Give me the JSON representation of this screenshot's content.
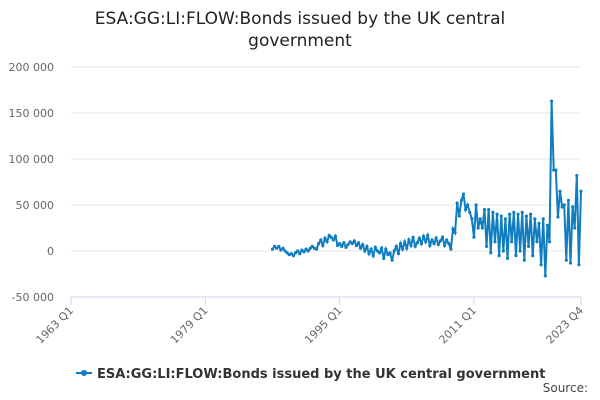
{
  "chart_data": {
    "type": "line",
    "title": "ESA:GG:LI:FLOW:Bonds issued by the UK central government",
    "source": "Source:",
    "categories": [
      "1963 Q1",
      null,
      null,
      null,
      null,
      null,
      null,
      null,
      null,
      null,
      null,
      null,
      null,
      null,
      null,
      null,
      null,
      null,
      null,
      null,
      null,
      null,
      null,
      null,
      null,
      null,
      null,
      null,
      null,
      null,
      null,
      null,
      null,
      null,
      null,
      null,
      null,
      null,
      null,
      null,
      null,
      null,
      null,
      null,
      null,
      null,
      null,
      null,
      null,
      null,
      null,
      null,
      null,
      null,
      null,
      null,
      null,
      null,
      null,
      null,
      null,
      null,
      null,
      null,
      "1979 Q1",
      null,
      null,
      null,
      null,
      null,
      null,
      null,
      null,
      null,
      null,
      null,
      null,
      null,
      null,
      null,
      null,
      null,
      null,
      null,
      null,
      null,
      null,
      null,
      null,
      null,
      null,
      null,
      null,
      null,
      null,
      null,
      null,
      null,
      null,
      null,
      null,
      null,
      null,
      null,
      null,
      null,
      null,
      null,
      null,
      null,
      null,
      null,
      null,
      null,
      null,
      null,
      null,
      null,
      null,
      null,
      null,
      null,
      null,
      null,
      null,
      null,
      null,
      null,
      "1995 Q1",
      null,
      null,
      null,
      null,
      null,
      null,
      null,
      null,
      null,
      null,
      null,
      null,
      null,
      null,
      null,
      null,
      null,
      null,
      null,
      null,
      null,
      null,
      null,
      null,
      null,
      null,
      null,
      null,
      null,
      null,
      null,
      null,
      null,
      null,
      null,
      null,
      null,
      null,
      null,
      null,
      null,
      null,
      null,
      null,
      null,
      null,
      null,
      null,
      null,
      null,
      null,
      null,
      null,
      null,
      null,
      null,
      null,
      null,
      null,
      null,
      null,
      null,
      null,
      "2011 Q1",
      null,
      null,
      null,
      null,
      null,
      null,
      null,
      null,
      null,
      null,
      null,
      null,
      null,
      null,
      null,
      null,
      null,
      null,
      null,
      null,
      null,
      null,
      null,
      null,
      null,
      null,
      null,
      null,
      null,
      null,
      null,
      null,
      null,
      null,
      null,
      null,
      null,
      null,
      null,
      null,
      null,
      null,
      null,
      null,
      null,
      null,
      null,
      null,
      null,
      null,
      "2023 Q4"
    ],
    "series": [
      {
        "name": "ESA:GG:LI:FLOW:Bonds issued by the UK central government",
        "color": "#0f7dbf",
        "values": [
          null,
          null,
          null,
          null,
          null,
          null,
          null,
          null,
          null,
          null,
          null,
          null,
          null,
          null,
          null,
          null,
          null,
          null,
          null,
          null,
          null,
          null,
          null,
          null,
          null,
          null,
          null,
          null,
          null,
          null,
          null,
          null,
          null,
          null,
          null,
          null,
          null,
          null,
          null,
          null,
          null,
          null,
          null,
          null,
          null,
          null,
          null,
          null,
          null,
          null,
          null,
          null,
          null,
          null,
          null,
          null,
          null,
          null,
          null,
          null,
          null,
          null,
          null,
          null,
          null,
          null,
          null,
          null,
          null,
          null,
          null,
          null,
          null,
          null,
          null,
          null,
          null,
          null,
          null,
          null,
          null,
          null,
          null,
          null,
          null,
          null,
          null,
          null,
          null,
          null,
          null,
          null,
          null,
          null,
          null,
          null,
          2000,
          5000,
          3000,
          5000,
          1000,
          3000,
          0,
          -2000,
          -4000,
          -3000,
          -5000,
          -2000,
          0,
          -3000,
          1000,
          -1000,
          2000,
          0,
          3000,
          5000,
          3000,
          2000,
          8000,
          12000,
          6000,
          14000,
          10000,
          17000,
          15000,
          12000,
          16000,
          6000,
          8000,
          5000,
          9000,
          4000,
          7000,
          10000,
          8000,
          11000,
          6000,
          9000,
          3000,
          7000,
          0,
          5000,
          -3000,
          2000,
          -5000,
          4000,
          0,
          -2000,
          3000,
          -8000,
          2000,
          -4000,
          -2000,
          -10000,
          0,
          5000,
          -3000,
          8000,
          2000,
          10000,
          3000,
          12000,
          6000,
          15000,
          5000,
          9000,
          14000,
          8000,
          16000,
          10000,
          17000,
          6000,
          12000,
          8000,
          14000,
          7000,
          11000,
          15000,
          6000,
          12000,
          8000,
          2000,
          24000,
          20000,
          52000,
          38000,
          55000,
          62000,
          45000,
          50000,
          42000,
          35000,
          15000,
          50000,
          25000,
          35000,
          25000,
          45000,
          5000,
          45000,
          -2000,
          42000,
          10000,
          40000,
          -5000,
          38000,
          0,
          35000,
          -8000,
          40000,
          10000,
          42000,
          -5000,
          40000,
          0,
          42000,
          -10000,
          38000,
          5000,
          40000,
          -5000,
          35000,
          10000,
          30000,
          -15000,
          35000,
          -27000,
          28000,
          10000,
          163000,
          88000,
          88000,
          37000,
          65000,
          48000,
          50000,
          -10000,
          55000,
          -13000,
          48000,
          25000,
          82000,
          -15000,
          65000
        ]
      }
    ],
    "ylim": [
      -50000,
      200000
    ],
    "yticks": [
      {
        "value": -50000,
        "label": "-50 000"
      },
      0,
      {
        "value": 50000,
        "label": "50 000"
      },
      {
        "value": 100000,
        "label": "100 000"
      },
      {
        "value": 150000,
        "label": "150 000"
      },
      {
        "value": 200000,
        "label": "200 000"
      }
    ],
    "grid": true
  }
}
